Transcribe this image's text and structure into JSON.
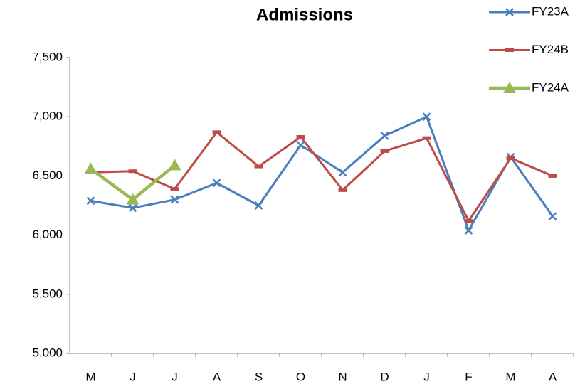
{
  "chart_data": {
    "type": "line",
    "title": "Admissions",
    "categories": [
      "M",
      "J",
      "J",
      "A",
      "S",
      "O",
      "N",
      "D",
      "J",
      "F",
      "M",
      "A"
    ],
    "series": [
      {
        "name": "FY23A",
        "color": "#4a7ebb",
        "marker": "x",
        "values": [
          6290,
          6230,
          6300,
          6440,
          6250,
          6760,
          6530,
          6840,
          7000,
          6040,
          6660,
          6160
        ]
      },
      {
        "name": "FY24B",
        "color": "#be4b48",
        "marker": "dash",
        "values": [
          6530,
          6540,
          6390,
          6870,
          6580,
          6830,
          6380,
          6710,
          6820,
          6120,
          6650,
          6500
        ]
      },
      {
        "name": "FY24A",
        "color": "#98b954",
        "marker": "triangle",
        "values": [
          6560,
          6300,
          6590,
          null,
          null,
          null,
          null,
          null,
          null,
          null,
          null,
          null
        ]
      }
    ],
    "ylim": [
      5000,
      7500
    ],
    "yticks": [
      {
        "value": 5000,
        "label": "5,000"
      },
      {
        "value": 5500,
        "label": "5,500"
      },
      {
        "value": 6000,
        "label": "6,000"
      },
      {
        "value": 6500,
        "label": "6,500"
      },
      {
        "value": 7000,
        "label": "7,000"
      },
      {
        "value": 7500,
        "label": "7,500"
      }
    ],
    "grid": false,
    "legend": "top-right"
  }
}
